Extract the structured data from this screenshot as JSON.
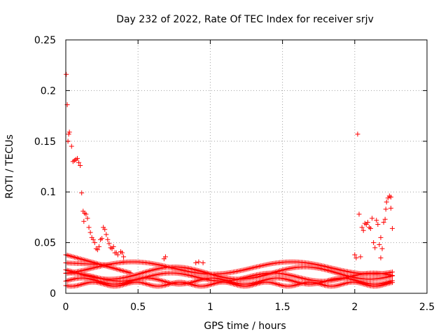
{
  "chart_data": {
    "type": "scatter",
    "title": "Day 232 of 2022, Rate Of TEC Index for receiver srjv",
    "xlabel": "GPS time / hours",
    "ylabel": "ROTI / TECUs",
    "xlim": [
      0,
      2.5
    ],
    "ylim": [
      0,
      0.25
    ],
    "xticks": [
      0,
      0.5,
      1,
      1.5,
      2,
      2.5
    ],
    "xtick_labels": [
      "0",
      "0.5",
      "1",
      "1.5",
      "2",
      "2.5"
    ],
    "yticks": [
      0,
      0.05,
      0.1,
      0.15,
      0.2,
      0.25
    ],
    "ytick_labels": [
      "0",
      "0.05",
      "0.1",
      "0.15",
      "0.2",
      "0.25"
    ],
    "grid": true,
    "marker": "+",
    "color": "#ff0000",
    "series": [
      {
        "name": "ROTI",
        "points": [
          [
            0.003,
            0.216
          ],
          [
            0.01,
            0.186
          ],
          [
            0.015,
            0.15
          ],
          [
            0.02,
            0.157
          ],
          [
            0.025,
            0.159
          ],
          [
            0.04,
            0.145
          ],
          [
            0.05,
            0.13
          ],
          [
            0.06,
            0.131
          ],
          [
            0.07,
            0.132
          ],
          [
            0.08,
            0.133
          ],
          [
            0.09,
            0.129
          ],
          [
            0.1,
            0.126
          ],
          [
            0.11,
            0.099
          ],
          [
            0.12,
            0.081
          ],
          [
            0.125,
            0.071
          ],
          [
            0.13,
            0.079
          ],
          [
            0.14,
            0.078
          ],
          [
            0.15,
            0.074
          ],
          [
            0.16,
            0.065
          ],
          [
            0.17,
            0.06
          ],
          [
            0.18,
            0.055
          ],
          [
            0.19,
            0.053
          ],
          [
            0.2,
            0.05
          ],
          [
            0.21,
            0.044
          ],
          [
            0.22,
            0.043
          ],
          [
            0.23,
            0.046
          ],
          [
            0.24,
            0.053
          ],
          [
            0.25,
            0.054
          ],
          [
            0.26,
            0.065
          ],
          [
            0.27,
            0.063
          ],
          [
            0.28,
            0.058
          ],
          [
            0.29,
            0.053
          ],
          [
            0.3,
            0.049
          ],
          [
            0.31,
            0.045
          ],
          [
            0.32,
            0.044
          ],
          [
            0.33,
            0.046
          ],
          [
            0.34,
            0.04
          ],
          [
            0.35,
            0.04
          ],
          [
            0.36,
            0.038
          ],
          [
            0.38,
            0.041
          ],
          [
            0.39,
            0.04
          ],
          [
            0.4,
            0.036
          ],
          [
            0.4,
            0.031
          ],
          [
            0.68,
            0.034
          ],
          [
            0.69,
            0.036
          ],
          [
            0.9,
            0.03
          ],
          [
            0.92,
            0.031
          ],
          [
            0.95,
            0.03
          ],
          [
            2.0,
            0.038
          ],
          [
            2.01,
            0.035
          ],
          [
            2.02,
            0.157
          ],
          [
            2.03,
            0.078
          ],
          [
            2.04,
            0.036
          ],
          [
            2.05,
            0.065
          ],
          [
            2.06,
            0.062
          ],
          [
            2.07,
            0.069
          ],
          [
            2.08,
            0.068
          ],
          [
            2.09,
            0.07
          ],
          [
            2.1,
            0.065
          ],
          [
            2.11,
            0.064
          ],
          [
            2.12,
            0.074
          ],
          [
            2.13,
            0.05
          ],
          [
            2.14,
            0.045
          ],
          [
            2.15,
            0.072
          ],
          [
            2.16,
            0.068
          ],
          [
            2.17,
            0.048
          ],
          [
            2.18,
            0.055
          ],
          [
            2.19,
            0.044
          ],
          [
            2.2,
            0.07
          ],
          [
            2.21,
            0.073
          ],
          [
            2.215,
            0.083
          ],
          [
            2.22,
            0.09
          ],
          [
            2.23,
            0.094
          ],
          [
            2.24,
            0.096
          ],
          [
            2.25,
            0.095
          ],
          [
            2.25,
            0.084
          ],
          [
            2.26,
            0.064
          ],
          [
            2.18,
            0.035
          ]
        ],
        "dense_band": {
          "description": "dense cluster of low ROTI values across the full time range",
          "x_start": 0.0,
          "x_end": 2.26,
          "x_step": 0.01,
          "tracks": [
            {
              "base": 0.012,
              "amplitude": 0.003,
              "period": 0.45
            },
            {
              "base": 0.016,
              "amplitude": 0.004,
              "period": 0.7
            },
            {
              "base": 0.02,
              "amplitude": 0.006,
              "period": 0.9
            },
            {
              "base": 0.009,
              "amplitude": 0.002,
              "period": 0.3
            },
            {
              "base": 0.025,
              "amplitude": 0.006,
              "period": 1.1
            }
          ],
          "early_tracks": [
            {
              "start": 0.0,
              "end": 0.45,
              "y0": 0.038,
              "y1": 0.02
            },
            {
              "start": 0.0,
              "end": 0.3,
              "y0": 0.03,
              "y1": 0.028
            }
          ]
        }
      }
    ]
  }
}
